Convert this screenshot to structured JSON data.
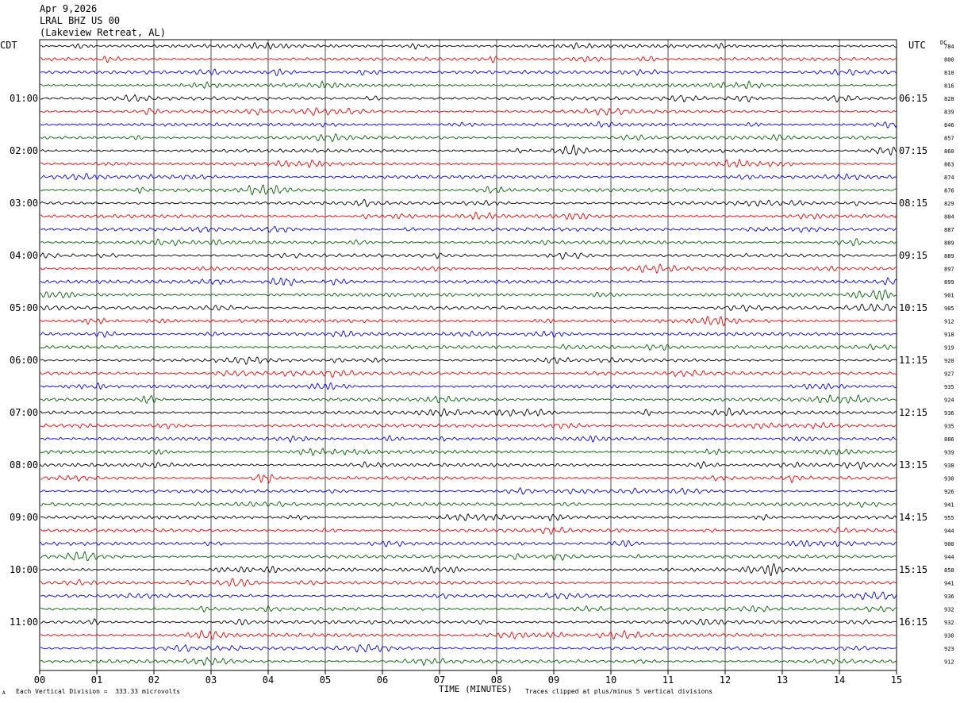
{
  "header": {
    "date": "Apr 9,2026",
    "station": "LRAL BHZ US 00",
    "location": "(Lakeview Retreat, AL)"
  },
  "left_timezone": "CDT",
  "right_timezone": "UTC",
  "dc_label": "DC",
  "footer": {
    "scale": "Each Vertical Division =  333.33 microvolts",
    "clip": "Traces clipped at plus/minus 5 vertical divisions",
    "corner_mark": "A"
  },
  "chart_data": {
    "type": "line",
    "title": "",
    "xlabel": "TIME (MINUTES)",
    "xlim": [
      0,
      15
    ],
    "x_ticks": [
      "00",
      "01",
      "02",
      "03",
      "04",
      "05",
      "06",
      "07",
      "08",
      "09",
      "10",
      "11",
      "12",
      "13",
      "14",
      "15"
    ],
    "trace_colors": [
      "#000000",
      "#ff0000",
      "#0000ff",
      "#006400"
    ],
    "trace_count": 48,
    "left_hour_labels": [
      "01:00",
      "02:00",
      "03:00",
      "04:00",
      "05:00",
      "06:00",
      "07:00",
      "08:00",
      "09:00",
      "10:00",
      "11:00"
    ],
    "right_hour_labels": [
      "06:15",
      "07:15",
      "08:15",
      "09:15",
      "10:15",
      "11:15",
      "12:15",
      "13:15",
      "14:15",
      "15:15",
      "16:15"
    ],
    "dc_offsets": [
      "784",
      "800",
      "810",
      "816",
      "828",
      "839",
      "846",
      "857",
      "860",
      "863",
      "874",
      "876",
      "829",
      "884",
      "887",
      "889",
      "889",
      "897",
      "899",
      "901",
      "905",
      "912",
      "918",
      "919",
      "920",
      "927",
      "935",
      "924",
      "936",
      "935",
      "886",
      "939",
      "938",
      "930",
      "926",
      "941",
      "955",
      "944",
      "900",
      "944",
      "858",
      "941",
      "936",
      "932",
      "932",
      "930",
      "923",
      "912"
    ]
  }
}
